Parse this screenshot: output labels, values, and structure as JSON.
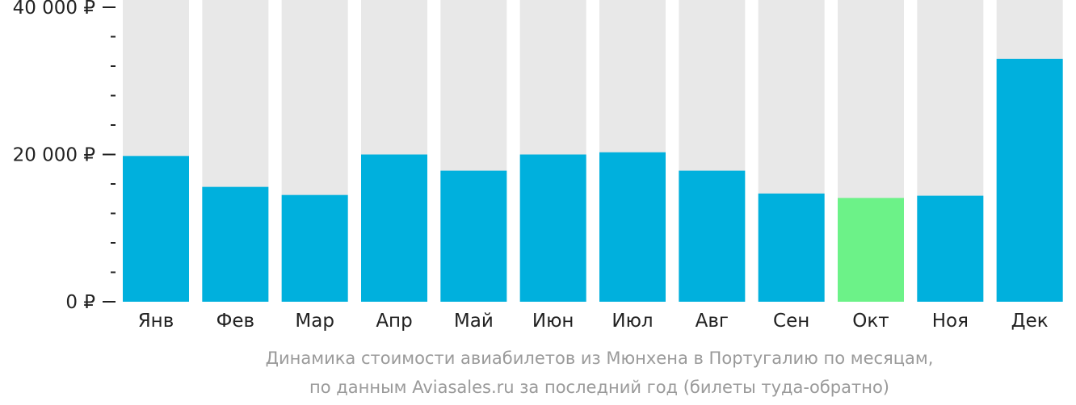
{
  "chart_data": {
    "type": "bar",
    "categories": [
      "Янв",
      "Фев",
      "Мар",
      "Апр",
      "Май",
      "Июн",
      "Июл",
      "Авг",
      "Сен",
      "Окт",
      "Ноя",
      "Дек"
    ],
    "values": [
      19800,
      15600,
      14500,
      20000,
      17800,
      20000,
      20300,
      17800,
      14700,
      14100,
      14400,
      33000
    ],
    "highlight_index": 9,
    "ylim": [
      0,
      40000
    ],
    "yticks": [
      0,
      20000,
      40000
    ],
    "ytick_labels": [
      "0 ₽",
      "20 000 ₽",
      "40 000 ₽"
    ],
    "minor_tick_step": 4000,
    "grid": false,
    "colors": {
      "bar": "#00b0dd",
      "highlight": "#6cf288",
      "background_bar": "#e8e8e8",
      "axis": "#222222",
      "caption": "#9a9a9a"
    }
  },
  "caption": {
    "line1": "Динамика стоимости авиабилетов из Мюнхена в Португалию по месяцам,",
    "line2": "по данным Aviasales.ru за последний год (билеты туда-обратно)"
  }
}
